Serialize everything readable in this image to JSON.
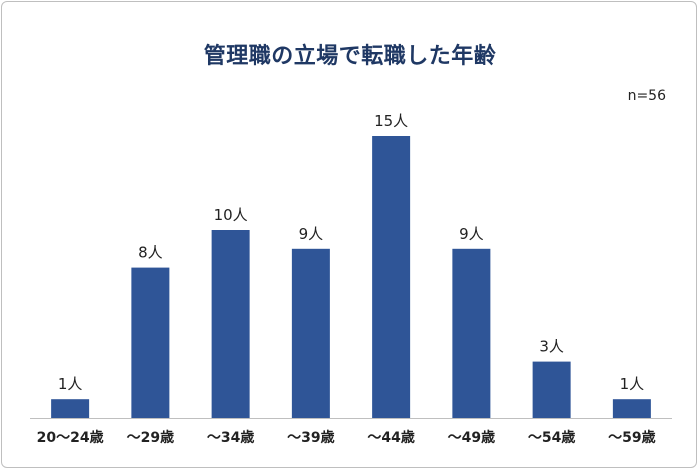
{
  "title": "管理職の立場で転職した年齢",
  "note": "n=56",
  "colors": {
    "bar": "#2f5597",
    "title": "#1f3864",
    "axis": "#bfbfbf"
  },
  "chart_data": {
    "type": "bar",
    "title": "管理職の立場で転職した年齢",
    "categories": [
      "20～24歳",
      "～29歳",
      "～34歳",
      "～39歳",
      "～44歳",
      "～49歳",
      "～54歳",
      "～59歳"
    ],
    "values": [
      1,
      8,
      10,
      9,
      15,
      9,
      3,
      1
    ],
    "data_labels": [
      "1人",
      "8人",
      "10人",
      "9人",
      "15人",
      "9人",
      "3人",
      "1人"
    ],
    "xlabel": "",
    "ylabel": "",
    "ylim": [
      0,
      15
    ],
    "grid": false,
    "legend": "none"
  }
}
